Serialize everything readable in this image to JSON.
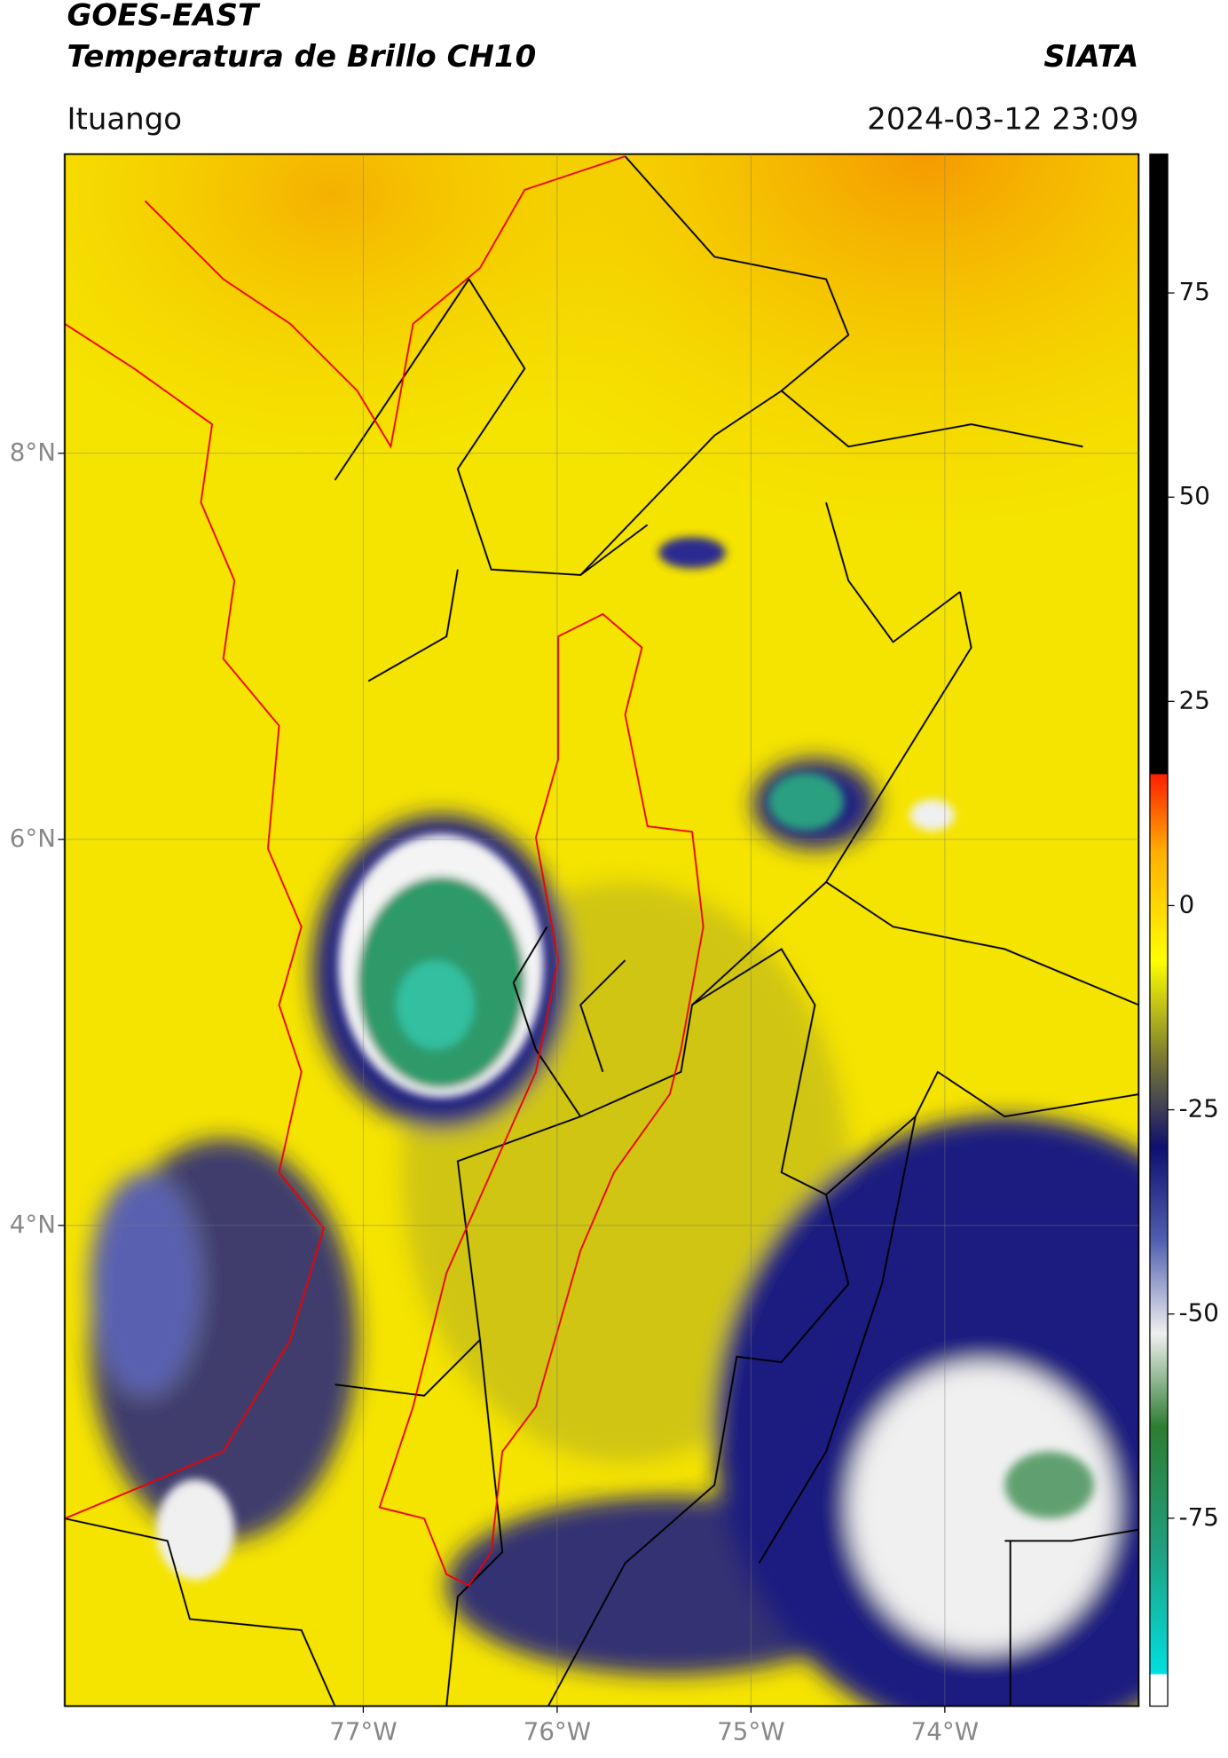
{
  "header": {
    "title": "GOES-EAST",
    "subtitle": "Temperatura de Brillo CH10",
    "source": "SIATA",
    "location": "Ituango",
    "datetime": "2024-03-12 23:09"
  },
  "map": {
    "lat_range": [
      1.51,
      9.55
    ],
    "lon_range": [
      -78.54,
      -73.0
    ],
    "lat_ticks": [
      {
        "value": 8,
        "label": "8°N"
      },
      {
        "value": 6,
        "label": "6°N"
      },
      {
        "value": 4,
        "label": "4°N"
      }
    ],
    "lon_ticks": [
      {
        "value": -77,
        "label": "77°W"
      },
      {
        "value": -76,
        "label": "76°W"
      },
      {
        "value": -75,
        "label": "75°W"
      },
      {
        "value": -74,
        "label": "74°W"
      }
    ]
  },
  "colorbar": {
    "range": [
      -98,
      92
    ],
    "ticks": [
      75,
      50,
      25,
      0,
      -25,
      -50,
      -75
    ]
  }
}
